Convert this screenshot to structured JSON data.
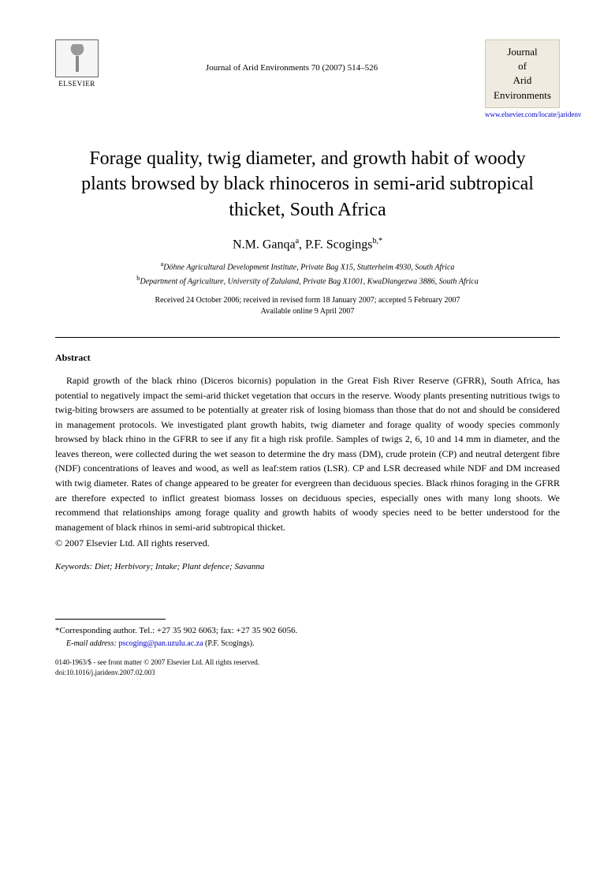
{
  "header": {
    "publisher_name": "ELSEVIER",
    "journal_reference": "Journal of Arid Environments 70 (2007) 514–526",
    "journal_box_line1": "Journal",
    "journal_box_line2": "of",
    "journal_box_line3": "Arid",
    "journal_box_line4": "Environments",
    "journal_url": "www.elsevier.com/locate/jaridenv"
  },
  "article": {
    "title": "Forage quality, twig diameter, and growth habit of woody plants browsed by black rhinoceros in semi-arid subtropical thicket, South Africa",
    "authors_html": "N.M. Ganqa",
    "author1_sup": "a",
    "author2": "P.F. Scogings",
    "author2_sup": "b,*",
    "affiliation_a_sup": "a",
    "affiliation_a": "Döhne Agricultural Development Institute, Private Bag X15, Stutterheim 4930, South Africa",
    "affiliation_b_sup": "b",
    "affiliation_b": "Department of Agriculture, University of Zululand, Private Bag X1001, KwaDlangezwa 3886, South Africa",
    "dates_line1": "Received 24 October 2006; received in revised form 18 January 2007; accepted 5 February 2007",
    "dates_line2": "Available online 9 April 2007"
  },
  "abstract": {
    "heading": "Abstract",
    "body": "Rapid growth of the black rhino (Diceros bicornis) population in the Great Fish River Reserve (GFRR), South Africa, has potential to negatively impact the semi-arid thicket vegetation that occurs in the reserve. Woody plants presenting nutritious twigs to twig-biting browsers are assumed to be potentially at greater risk of losing biomass than those that do not and should be considered in management protocols. We investigated plant growth habits, twig diameter and forage quality of woody species commonly browsed by black rhino in the GFRR to see if any fit a high risk profile. Samples of twigs 2, 6, 10 and 14 mm in diameter, and the leaves thereon, were collected during the wet season to determine the dry mass (DM), crude protein (CP) and neutral detergent fibre (NDF) concentrations of leaves and wood, as well as leaf:stem ratios (LSR). CP and LSR decreased while NDF and DM increased with twig diameter. Rates of change appeared to be greater for evergreen than deciduous species. Black rhinos foraging in the GFRR are therefore expected to inflict greatest biomass losses on deciduous species, especially ones with many long shoots. We recommend that relationships among forage quality and growth habits of woody species need to be better understood for the management of black rhinos in semi-arid subtropical thicket.",
    "copyright": "© 2007 Elsevier Ltd. All rights reserved."
  },
  "keywords": {
    "label": "Keywords:",
    "list": "Diet; Herbivory; Intake; Plant defence; Savanna"
  },
  "footnote": {
    "corr_label": "*Corresponding author. Tel.: +27 35 902 6063; fax: +27 35 902 6056.",
    "email_label": "E-mail address:",
    "email": "pscoging@pan.uzulu.ac.za",
    "email_name": "(P.F. Scogings)."
  },
  "footer": {
    "line1": "0140-1963/$ - see front matter © 2007 Elsevier Ltd. All rights reserved.",
    "line2": "doi:10.1016/j.jaridenv.2007.02.003"
  }
}
